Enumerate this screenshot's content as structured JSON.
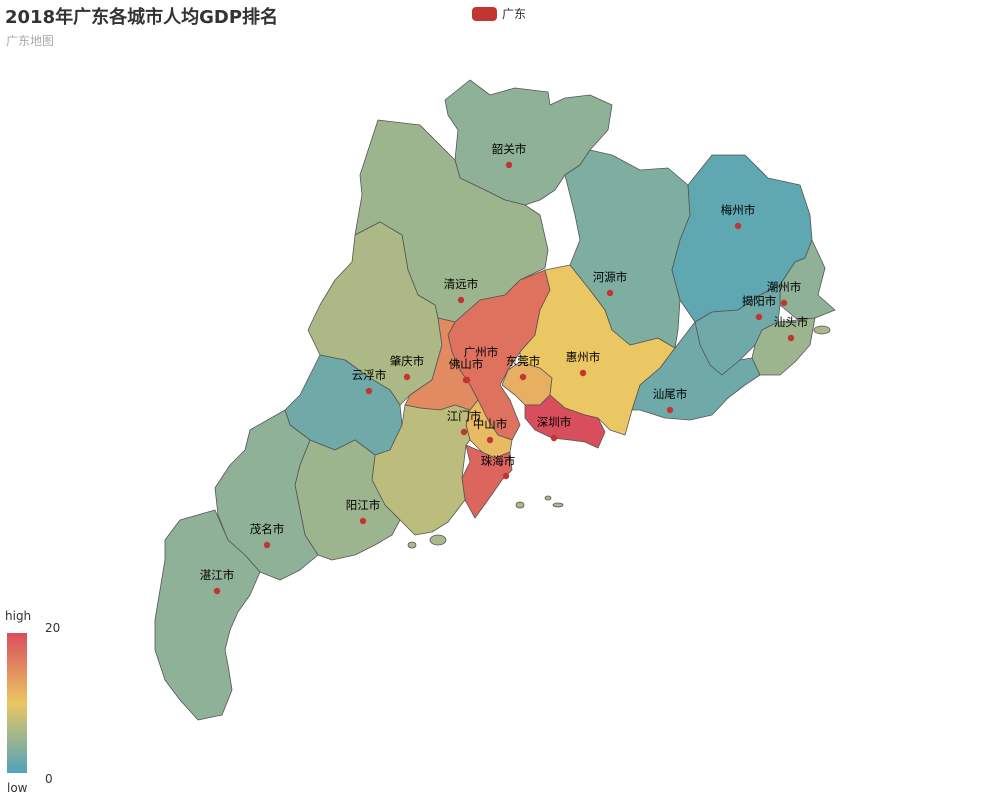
{
  "title": "2018年广东各城市人均GDP排名",
  "subtitle": "广东地图",
  "legend": {
    "label": "广东",
    "color": "#c23531"
  },
  "visual_map": {
    "high_label": "high",
    "low_label": "low",
    "max": "20",
    "min": "0",
    "colors": [
      "#50a3ba",
      "#eac763",
      "#d94e5d"
    ]
  },
  "map": {
    "point_color": "#c23531",
    "cities": [
      {
        "name": "韶关市",
        "value": 4
      },
      {
        "name": "清远市",
        "value": 5
      },
      {
        "name": "肇庆市",
        "value": 6
      },
      {
        "name": "云浮市",
        "value": 2
      },
      {
        "name": "广州市",
        "value": 17
      },
      {
        "name": "佛山市",
        "value": 15
      },
      {
        "name": "东莞市",
        "value": 12
      },
      {
        "name": "惠州市",
        "value": 10
      },
      {
        "name": "河源市",
        "value": 3
      },
      {
        "name": "梅州市",
        "value": 1
      },
      {
        "name": "潮州市",
        "value": 4
      },
      {
        "name": "揭阳市",
        "value": 2
      },
      {
        "name": "汕头市",
        "value": 5
      },
      {
        "name": "汕尾市",
        "value": 2
      },
      {
        "name": "深圳市",
        "value": 20
      },
      {
        "name": "中山市",
        "value": 11
      },
      {
        "name": "珠海市",
        "value": 18
      },
      {
        "name": "江门市",
        "value": 7
      },
      {
        "name": "阳江市",
        "value": 5
      },
      {
        "name": "茂名市",
        "value": 4
      },
      {
        "name": "湛江市",
        "value": 4
      }
    ]
  }
}
